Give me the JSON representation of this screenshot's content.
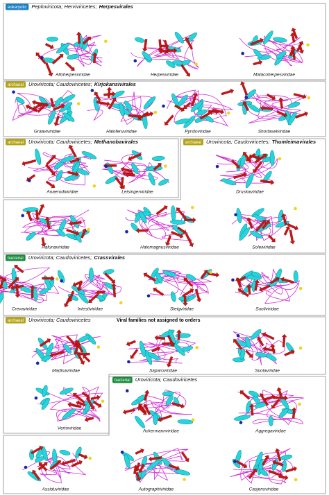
{
  "panels": [
    {
      "badge": "eukaryotic",
      "lineage": "Peploviricota; Herviviricetes;",
      "order": "Herpesvirales",
      "families": [
        "Alloherpesviridae",
        "Herpesviridae",
        "Malacoherpesviridae"
      ]
    },
    {
      "badge": "archaeal",
      "lineage": "Uroviricota; Caudoviricetes;",
      "order": "Kirjokansivirales",
      "families": [
        "Graaviviridae",
        "Haloferuviridae",
        "Pyrstoviridae",
        "Shortaselviridae"
      ]
    },
    {
      "badge": "archaeal",
      "lineage": "Uroviricota; Caudoviricetes;",
      "order": "Methanobavirales",
      "families": [
        "Anaerodiviridae",
        "Leisingerviridae"
      ]
    },
    {
      "badge": "archaeal",
      "lineage": "Uroviricota; Caudoviricetes;",
      "order": "Thumleimavirales",
      "families": [
        "Druskaviridae",
        "Hafunaviridae",
        "Halomagnusviridae",
        "Soleiviridae"
      ]
    },
    {
      "badge": "bacterial",
      "lineage": "Uroviricota; Caudoviricetes;",
      "order": "Crassvirales",
      "families": [
        "Crevaviridae",
        "Intestiviridae",
        "Steigviridae",
        "Suoliviridae"
      ]
    },
    {
      "badge": "archaeal",
      "lineage": "Uroviricota; Caudoviricetes",
      "note": "Viral families not assigned to orders",
      "families": [
        "Madisaviridae",
        "Saparoviridae",
        "Suolaviridae",
        "Vertoviridae"
      ]
    },
    {
      "badge": "bacterial",
      "lineage": "Uroviricota; Caudoviricetes",
      "note": "Viral families not assigned to orders",
      "families": [
        "Ackermannviridae",
        "Aggregaviridae",
        "Assiduviridae",
        "Autographiviridae",
        "Casjensviridae"
      ]
    }
  ]
}
